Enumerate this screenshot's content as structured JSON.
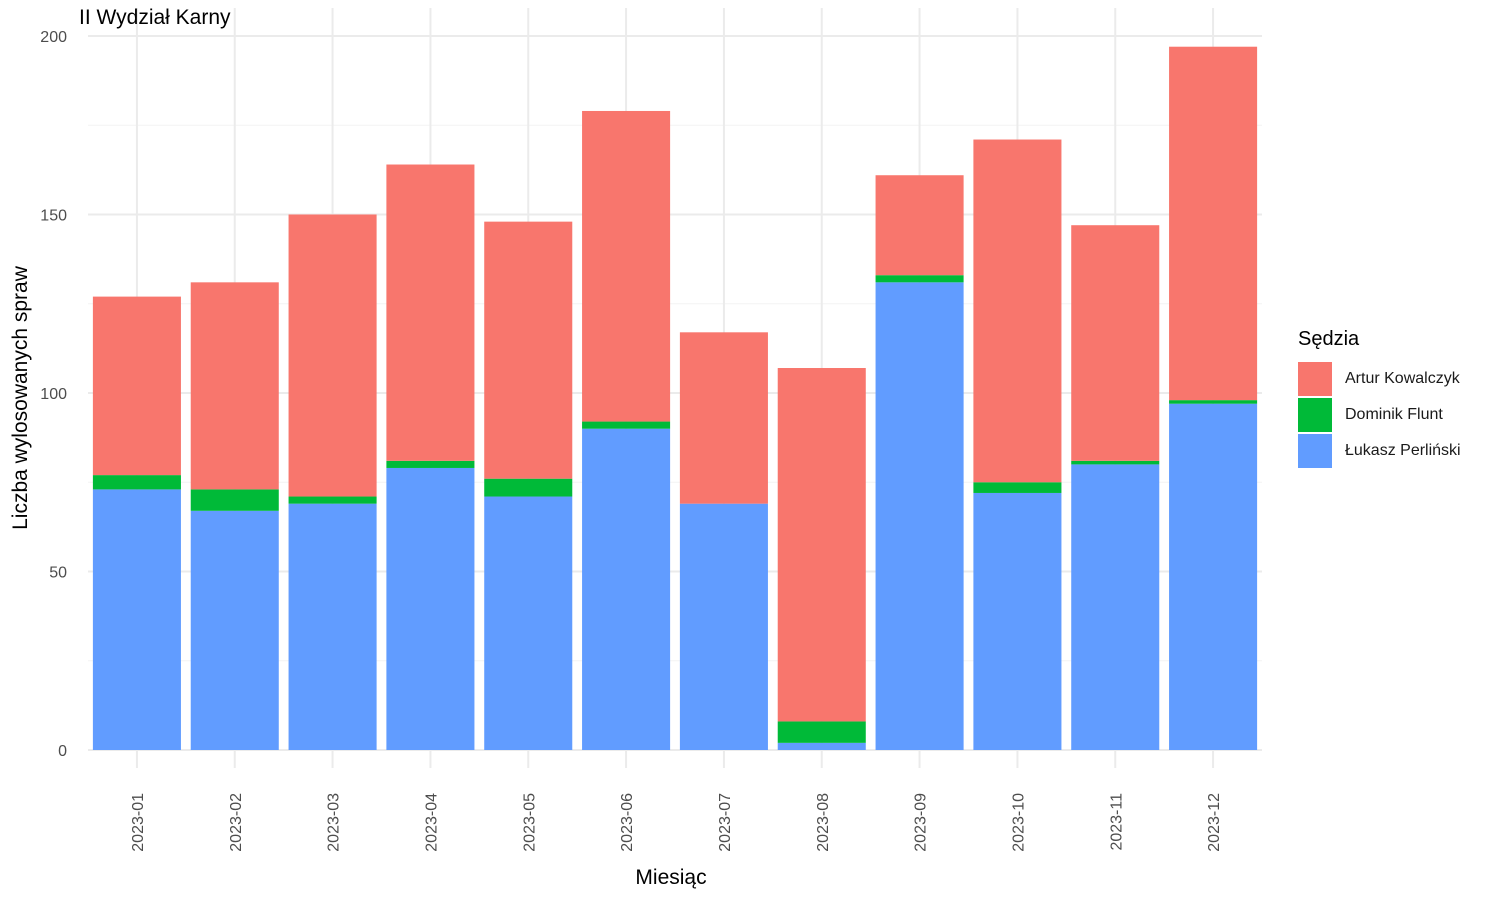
{
  "chart_data": {
    "type": "bar",
    "stacked": true,
    "title": "II Wydział Karny",
    "xlabel": "Miesiąc",
    "ylabel": "Liczba wylosowanych spraw",
    "ylim": [
      0,
      200
    ],
    "yticks": [
      0,
      50,
      100,
      150,
      200
    ],
    "grid": true,
    "legend_title": "Sędzia",
    "legend_position": "right",
    "categories": [
      "2023-01",
      "2023-02",
      "2023-03",
      "2023-04",
      "2023-05",
      "2023-06",
      "2023-07",
      "2023-08",
      "2023-09",
      "2023-10",
      "2023-11",
      "2023-12"
    ],
    "series": [
      {
        "name": "Łukasz Perliński",
        "color": "#619CFF",
        "values": [
          73,
          67,
          69,
          79,
          71,
          90,
          69,
          2,
          131,
          72,
          80,
          97
        ]
      },
      {
        "name": "Dominik Flunt",
        "color": "#00BA38",
        "values": [
          4,
          6,
          2,
          2,
          5,
          2,
          0,
          6,
          2,
          3,
          1,
          1
        ]
      },
      {
        "name": "Artur Kowalczyk",
        "color": "#F8766D",
        "values": [
          50,
          58,
          79,
          83,
          72,
          87,
          48,
          99,
          28,
          96,
          66,
          99
        ]
      }
    ],
    "legend_order": [
      "Artur Kowalczyk",
      "Dominik Flunt",
      "Łukasz Perliński"
    ]
  }
}
